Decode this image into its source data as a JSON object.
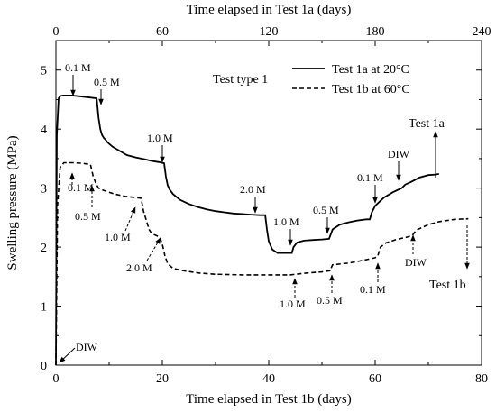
{
  "chart_data": {
    "type": "line",
    "xlabel_bottom": "Time elapsed in Test 1b (days)",
    "xlabel_top": "Time elapsed in Test 1a (days)",
    "ylabel": "Swelling pressure (MPa)",
    "x_bottom_range": [
      0,
      80
    ],
    "x_top_range": [
      0,
      240
    ],
    "y_range": [
      0,
      5.5
    ],
    "x_bottom_ticks": [
      0,
      20,
      40,
      60,
      80
    ],
    "x_top_ticks": [
      0,
      60,
      120,
      180,
      240
    ],
    "y_ticks": [
      0,
      1,
      2,
      3,
      4,
      5
    ],
    "grid": false,
    "legend_placement": "top-right",
    "test_type_label": "Test type 1",
    "series": [
      {
        "name": "Test 1a at 20°C",
        "style": "solid",
        "x_axis": "top",
        "x": [
          0,
          0.5,
          1.5,
          2.5,
          4,
          9,
          15,
          23,
          24,
          25,
          26,
          27,
          28,
          29,
          30,
          32,
          36,
          40,
          45,
          50,
          54,
          58,
          61,
          62,
          63,
          64,
          66,
          70,
          75,
          80,
          85,
          90,
          95,
          100,
          105,
          110,
          115,
          118,
          119,
          120,
          122,
          125,
          130,
          133,
          134,
          136,
          140,
          145,
          150,
          154,
          156,
          160,
          165,
          170,
          175,
          177,
          178,
          180,
          185,
          190,
          195,
          197,
          200,
          205,
          210,
          214,
          216
        ],
        "y": [
          0,
          3.9,
          4.52,
          4.56,
          4.57,
          4.57,
          4.55,
          4.52,
          4.2,
          4.0,
          3.9,
          3.85,
          3.82,
          3.78,
          3.75,
          3.7,
          3.63,
          3.56,
          3.52,
          3.49,
          3.46,
          3.44,
          3.42,
          3.2,
          3.05,
          2.98,
          2.9,
          2.8,
          2.73,
          2.68,
          2.64,
          2.61,
          2.59,
          2.57,
          2.56,
          2.55,
          2.54,
          2.54,
          2.3,
          2.1,
          1.96,
          1.9,
          1.9,
          1.9,
          2.0,
          2.08,
          2.11,
          2.12,
          2.13,
          2.14,
          2.3,
          2.38,
          2.42,
          2.45,
          2.47,
          2.47,
          2.58,
          2.7,
          2.84,
          2.93,
          3.0,
          3.06,
          3.1,
          3.18,
          3.22,
          3.23,
          3.24
        ]
      },
      {
        "name": "Test 1b at 60°C",
        "style": "dashed",
        "x_axis": "bottom",
        "x": [
          0,
          0.3,
          0.8,
          1.5,
          3,
          5,
          6.5,
          7,
          7.5,
          8,
          9,
          11,
          13,
          15,
          16,
          16.5,
          17,
          17.5,
          18,
          19.5,
          20,
          20.5,
          21,
          22,
          24,
          27,
          30,
          35,
          40,
          44,
          47,
          50,
          51.5,
          52,
          55,
          58,
          60,
          60.5,
          61,
          62,
          64,
          66,
          67,
          67.5,
          68,
          70,
          72,
          75,
          77.5
        ],
        "y": [
          0,
          2.7,
          3.35,
          3.43,
          3.43,
          3.42,
          3.4,
          3.2,
          3.08,
          3.0,
          2.96,
          2.9,
          2.86,
          2.84,
          2.83,
          2.6,
          2.45,
          2.3,
          2.23,
          2.17,
          2.05,
          1.85,
          1.72,
          1.64,
          1.6,
          1.56,
          1.54,
          1.53,
          1.53,
          1.53,
          1.56,
          1.58,
          1.6,
          1.7,
          1.73,
          1.78,
          1.82,
          1.85,
          2.0,
          2.07,
          2.13,
          2.17,
          2.2,
          2.26,
          2.3,
          2.38,
          2.43,
          2.47,
          2.48
        ]
      }
    ],
    "annotations": [
      {
        "text": "0.1 M",
        "series": "Test 1a at 20°C"
      },
      {
        "text": "0.5 M",
        "series": "Test 1a at 20°C"
      },
      {
        "text": "1.0 M",
        "series": "Test 1a at 20°C"
      },
      {
        "text": "2.0 M",
        "series": "Test 1a at 20°C"
      },
      {
        "text": "1.0 M",
        "series": "Test 1a at 20°C"
      },
      {
        "text": "0.5 M",
        "series": "Test 1a at 20°C"
      },
      {
        "text": "0.1 M",
        "series": "Test 1a at 20°C"
      },
      {
        "text": "DIW",
        "series": "Test 1a at 20°C"
      },
      {
        "text": "Test 1a",
        "series": "Test 1a at 20°C"
      },
      {
        "text": "0.1 M",
        "series": "Test 1b at 60°C"
      },
      {
        "text": "0.5 M",
        "series": "Test 1b at 60°C"
      },
      {
        "text": "1.0 M",
        "series": "Test 1b at 60°C"
      },
      {
        "text": "2.0 M",
        "series": "Test 1b at 60°C"
      },
      {
        "text": "1.0 M",
        "series": "Test 1b at 60°C"
      },
      {
        "text": "0.5 M",
        "series": "Test 1b at 60°C"
      },
      {
        "text": "0.1 M",
        "series": "Test 1b at 60°C"
      },
      {
        "text": "DIW",
        "series": "Test 1b at 60°C"
      },
      {
        "text": "Test 1b",
        "series": "Test 1b at 60°C"
      },
      {
        "text": "DIW",
        "series": "both"
      }
    ]
  }
}
